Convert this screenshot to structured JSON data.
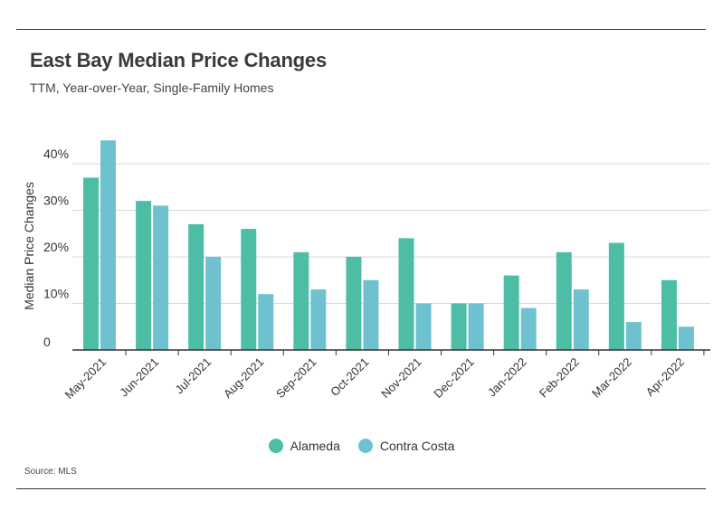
{
  "title": "East Bay Median Price Changes",
  "subtitle": "TTM, Year-over-Year, Single-Family Homes",
  "source": "Source:  MLS",
  "colors": {
    "alameda": "#4dbea5",
    "contra_costa": "#6ec2cf"
  },
  "chart_data": {
    "type": "bar",
    "ylabel": "Median Price Changes",
    "ylim": [
      0,
      45
    ],
    "yticks": [
      0,
      10,
      20,
      30,
      40
    ],
    "ytick_labels": [
      "0",
      "10%",
      "20%",
      "30%",
      "40%"
    ],
    "grid": true,
    "legend_position": "bottom",
    "categories": [
      "May-2021",
      "Jun-2021",
      "Jul-2021",
      "Aug-2021",
      "Sep-2021",
      "Oct-2021",
      "Nov-2021",
      "Dec-2021",
      "Jan-2022",
      "Feb-2022",
      "Mar-2022",
      "Apr-2022"
    ],
    "series": [
      {
        "name": "Alameda",
        "values": [
          37,
          32,
          27,
          26,
          21,
          20,
          24,
          10,
          16,
          21,
          23,
          15
        ]
      },
      {
        "name": "Contra Costa",
        "values": [
          45,
          31,
          20,
          12,
          13,
          15,
          10,
          10,
          9,
          13,
          6,
          5
        ]
      }
    ]
  }
}
